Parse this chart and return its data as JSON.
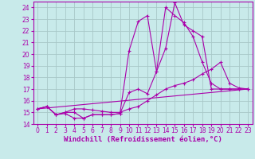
{
  "background_color": "#c8eaea",
  "grid_color": "#a8c8c8",
  "line_color": "#aa00aa",
  "marker": "+",
  "xlim": [
    -0.5,
    23.5
  ],
  "ylim": [
    14,
    24.5
  ],
  "xlabel": "Windchill (Refroidissement éolien,°C)",
  "xlabel_fontsize": 6.5,
  "ytick_labels": [
    "14",
    "15",
    "16",
    "17",
    "18",
    "19",
    "20",
    "21",
    "22",
    "23",
    "24"
  ],
  "ytick_vals": [
    14,
    15,
    16,
    17,
    18,
    19,
    20,
    21,
    22,
    23,
    24
  ],
  "xtick_vals": [
    0,
    1,
    2,
    3,
    4,
    5,
    6,
    7,
    8,
    9,
    10,
    11,
    12,
    13,
    14,
    15,
    16,
    17,
    18,
    19,
    20,
    21,
    22,
    23
  ],
  "series": [
    {
      "x": [
        0,
        1,
        2,
        3,
        4,
        5,
        6,
        7,
        8,
        9,
        10,
        11,
        12,
        13,
        14,
        15,
        16,
        17,
        18,
        19,
        20,
        21,
        22,
        23
      ],
      "y": [
        15.3,
        15.5,
        14.8,
        14.9,
        14.5,
        14.5,
        14.8,
        14.8,
        14.8,
        14.9,
        20.3,
        22.8,
        23.3,
        18.5,
        20.5,
        24.4,
        22.5,
        22.0,
        21.5,
        17.0,
        17.0,
        17.0,
        17.0,
        17.0
      ],
      "has_marker": true
    },
    {
      "x": [
        0,
        1,
        2,
        3,
        4,
        5,
        6,
        7,
        8,
        9,
        10,
        11,
        12,
        13,
        14,
        15,
        16,
        17,
        18,
        19,
        20,
        21,
        22,
        23
      ],
      "y": [
        15.3,
        15.5,
        14.8,
        15.0,
        15.0,
        14.5,
        14.8,
        14.8,
        14.8,
        14.9,
        16.7,
        17.0,
        16.6,
        18.5,
        24.0,
        23.3,
        22.7,
        21.5,
        19.3,
        17.5,
        17.0,
        17.0,
        17.0,
        17.0
      ],
      "has_marker": true
    },
    {
      "x": [
        0,
        1,
        2,
        3,
        4,
        5,
        6,
        7,
        8,
        9,
        10,
        11,
        12,
        13,
        14,
        15,
        16,
        17,
        18,
        19,
        20,
        21,
        22,
        23
      ],
      "y": [
        15.3,
        15.5,
        14.8,
        15.0,
        15.3,
        15.3,
        15.2,
        15.1,
        15.0,
        15.0,
        15.3,
        15.5,
        16.0,
        16.5,
        17.0,
        17.3,
        17.5,
        17.8,
        18.3,
        18.7,
        19.3,
        17.5,
        17.1,
        17.0
      ],
      "has_marker": true
    },
    {
      "x": [
        0,
        23
      ],
      "y": [
        15.3,
        17.0
      ],
      "has_marker": false
    }
  ]
}
